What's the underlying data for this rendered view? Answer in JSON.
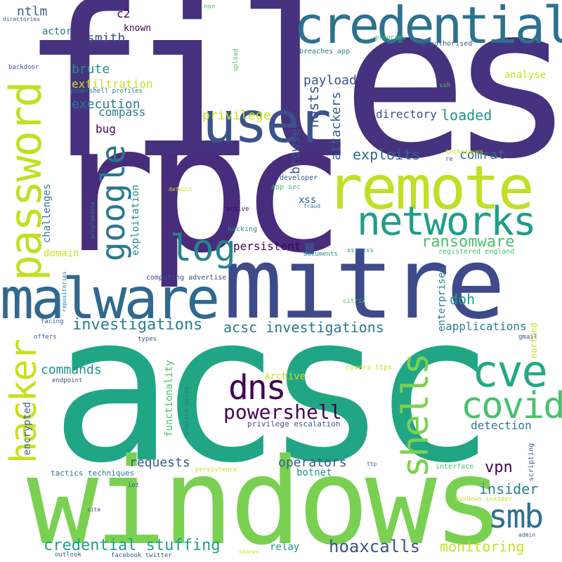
{
  "words": [
    "files",
    "rpc",
    "acsc",
    "windows",
    "mitre",
    "remote",
    "credential",
    "networks",
    "malware",
    "user",
    "password",
    "google",
    "log",
    "cve",
    "covid",
    "dns",
    "smb",
    "shells",
    "hacker",
    "powershell",
    "investigations",
    "acsc investigations",
    "ransomware",
    "credential stuffing",
    "hoaxcalls",
    "monitoring",
    "requests",
    "operators",
    "vpn",
    "insider",
    "detection",
    "applications",
    "doh",
    "exploits",
    "comrat",
    "directory",
    "loaded",
    "attackers",
    "hosts",
    "browser",
    "privilege",
    "payload",
    "breaches app",
    "execution",
    "exfiltration",
    "brute",
    "smith",
    "c2",
    "known",
    "ntlm",
    "actor",
    "compass",
    "bug",
    "persistent",
    "domain",
    "challenges",
    "exploitation",
    "commands",
    "encrypted",
    "functionality",
    "botnet",
    "relay",
    "archive",
    "analyse",
    "enterprises",
    "xss",
    "norfund",
    "tactics techniques",
    "privilege escalation",
    "england wales",
    "scripting",
    "interface",
    "windows insider",
    "covers ttps",
    "registered england",
    "xss xss",
    "documents",
    "gmail",
    "types",
    "offers",
    "endpoint",
    "facing",
    "repositories",
    "computing advertise",
    "programdata",
    "hacking",
    "active",
    "default",
    "developer",
    "app sec",
    "fraud",
    "techniques",
    "re",
    "citrix",
    "unauthorised",
    "programs",
    "upload",
    "non",
    "directories",
    "backdoor",
    "powershell profiles",
    "ssh",
    "persistence",
    "ttp",
    "iot",
    "site",
    "outlook",
    "facebook twitter",
    "shares",
    "admin"
  ],
  "colors": {
    "dark_purple": "#440154",
    "indigo": "#46327e",
    "blue": "#365c8d",
    "steel": "#277f8e",
    "teal": "#1fa187",
    "green": "#4ac16d",
    "lime": "#a0da39",
    "yellow": "#c8e020"
  }
}
